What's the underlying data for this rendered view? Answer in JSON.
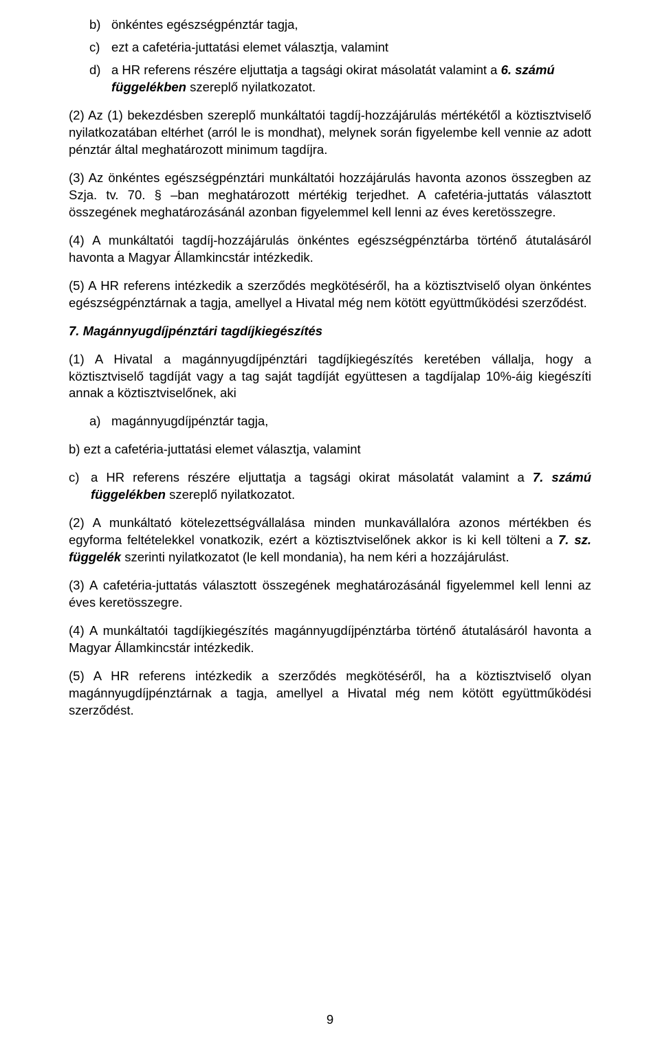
{
  "section6": {
    "items": [
      {
        "marker": "b)",
        "text": "önkéntes egészségpénztár tagja,"
      },
      {
        "marker": "c)",
        "text": "ezt a cafetéria-juttatási elemet választja, valamint"
      },
      {
        "marker": "d)",
        "prefix": "a HR referens részére eljuttatja a tagsági okirat másolatát valamint a ",
        "bold": "6. számú függelékben",
        "suffix": " szereplő nyilatkozatot."
      }
    ],
    "p2": "(2) Az (1) bekezdésben szereplő munkáltatói tagdíj-hozzájárulás mértékétől a köztisztviselő nyilatkozatában eltérhet (arról le is mondhat), melynek során figyelembe kell vennie az adott pénztár által meghatározott minimum tagdíjra.",
    "p3": "(3) Az önkéntes egészségpénztári munkáltatói hozzájárulás havonta azonos összegben az Szja. tv. 70. § –ban meghatározott mértékig terjedhet. A cafetéria-juttatás választott összegének meghatározásánál azonban figyelemmel kell lenni az éves keretösszegre.",
    "p4": "(4) A munkáltatói tagdíj-hozzájárulás önkéntes egészségpénztárba történő átutalásáról havonta a Magyar Államkincstár intézkedik.",
    "p5": "(5) A HR referens intézkedik a szerződés megkötéséről, ha a köztisztviselő olyan önkéntes egészségpénztárnak a tagja, amellyel a Hivatal még nem kötött együttműködési szerződést."
  },
  "heading7": "7. Magánnyugdíjpénztári tagdíjkiegészítés",
  "section7": {
    "p1": "(1) A Hivatal a magánnyugdíjpénztári tagdíjkiegészítés keretében vállalja, hogy a köztisztviselő tagdíját vagy a tag saját tagdíját együttesen a tagdíjalap 10%-áig kiegészíti annak a köztisztviselőnek, aki",
    "items": [
      {
        "marker": "a)",
        "text": "magánnyugdíjpénztár tagja,"
      }
    ],
    "b_text": "b)  ezt a cafetéria-juttatási elemet választja, valamint",
    "c": {
      "marker": "c)",
      "prefix": "a HR referens részére eljuttatja a tagsági okirat másolatát valamint a ",
      "bold": "7. számú függelékben",
      "suffix": " szereplő nyilatkozatot."
    },
    "p2_prefix": "(2) A munkáltató kötelezettségvállalása minden munkavállalóra azonos mértékben és egyforma feltételekkel vonatkozik, ezért a köztisztviselőnek akkor is ki kell tölteni a ",
    "p2_bold": "7. sz. függelék",
    "p2_suffix": " szerinti nyilatkozatot (le kell mondania), ha nem kéri a hozzájárulást.",
    "p3": "(3) A cafetéria-juttatás választott összegének meghatározásánál figyelemmel kell lenni az éves keretösszegre.",
    "p4": "(4) A munkáltatói tagdíjkiegészítés magánnyugdíjpénztárba történő átutalásáról havonta a Magyar Államkincstár intézkedik.",
    "p5": "(5) A HR referens intézkedik a szerződés megkötéséről, ha a köztisztviselő olyan magánnyugdíjpénztárnak a tagja, amellyel a Hivatal még nem kötött együttműködési szerződést."
  },
  "pageNumber": "9"
}
